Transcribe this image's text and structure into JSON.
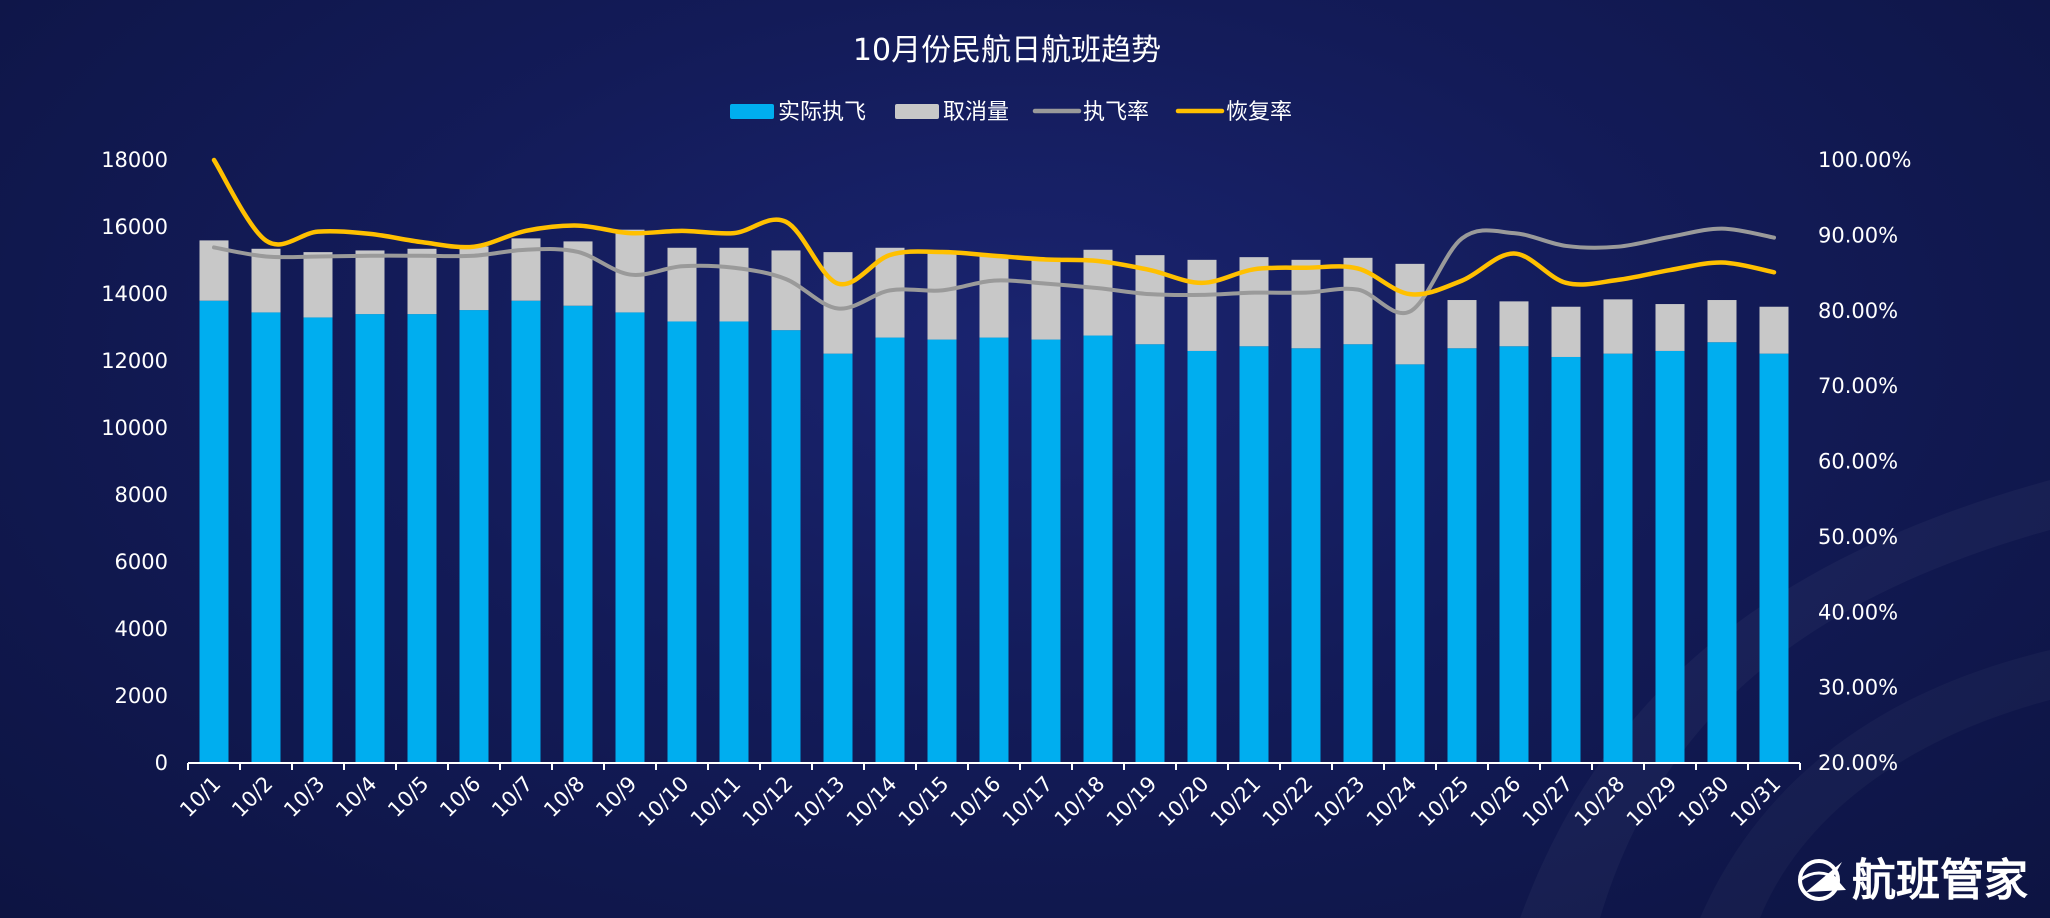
{
  "chart_data": {
    "type": "bar",
    "stacked": true,
    "title": "10月份民航日航班趋势",
    "legend_position": "top-center",
    "grid": false,
    "categories": [
      "10/1",
      "10/2",
      "10/3",
      "10/4",
      "10/5",
      "10/6",
      "10/7",
      "10/8",
      "10/9",
      "10/10",
      "10/11",
      "10/12",
      "10/13",
      "10/14",
      "10/15",
      "10/16",
      "10/17",
      "10/18",
      "10/19",
      "10/20",
      "10/21",
      "10/22",
      "10/23",
      "10/24",
      "10/25",
      "10/26",
      "10/27",
      "10/28",
      "10/29",
      "10/30",
      "10/31"
    ],
    "y_left": {
      "min": 0,
      "max": 18000,
      "ticks": [
        "0",
        "2000",
        "4000",
        "6000",
        "8000",
        "10000",
        "12000",
        "14000",
        "16000",
        "18000"
      ]
    },
    "y_right": {
      "min": 0.2,
      "max": 1.0,
      "ticks": [
        "20.00%",
        "30.00%",
        "40.00%",
        "50.00%",
        "60.00%",
        "70.00%",
        "80.00%",
        "90.00%",
        "100.00%"
      ]
    },
    "series": [
      {
        "name": "实际执飞",
        "kind": "bar",
        "axis": "left",
        "color": "#00aeef",
        "values": [
          13800,
          13450,
          13300,
          13400,
          13400,
          13520,
          13800,
          13650,
          13450,
          13180,
          13180,
          12920,
          12220,
          12700,
          12640,
          12700,
          12640,
          12760,
          12500,
          12300,
          12440,
          12380,
          12500,
          11900,
          12380,
          12440,
          12120,
          12220,
          12300,
          12560,
          12220
        ]
      },
      {
        "name": "取消量",
        "kind": "bar",
        "axis": "left",
        "color": "#c8c8c8",
        "values": [
          1800,
          1900,
          1950,
          1900,
          1950,
          1900,
          1860,
          1920,
          2470,
          2200,
          2200,
          2380,
          3030,
          2680,
          2660,
          2420,
          2440,
          2560,
          2660,
          2720,
          2660,
          2640,
          2580,
          3000,
          1440,
          1340,
          1500,
          1620,
          1400,
          1260,
          1400
        ]
      },
      {
        "name": "执飞率",
        "kind": "line",
        "axis": "right",
        "color": "#9a9a9a",
        "values": [
          0.884,
          0.872,
          0.872,
          0.873,
          0.873,
          0.873,
          0.881,
          0.878,
          0.848,
          0.859,
          0.857,
          0.842,
          0.803,
          0.827,
          0.827,
          0.84,
          0.836,
          0.83,
          0.822,
          0.821,
          0.824,
          0.824,
          0.828,
          0.799,
          0.896,
          0.903,
          0.886,
          0.885,
          0.898,
          0.909,
          0.897
        ]
      },
      {
        "name": "恢复率",
        "kind": "line",
        "axis": "right",
        "color": "#ffc000",
        "values": [
          1.0,
          0.893,
          0.905,
          0.902,
          0.891,
          0.885,
          0.906,
          0.913,
          0.903,
          0.906,
          0.903,
          0.918,
          0.836,
          0.874,
          0.878,
          0.873,
          0.868,
          0.866,
          0.854,
          0.837,
          0.855,
          0.857,
          0.856,
          0.822,
          0.84,
          0.876,
          0.837,
          0.841,
          0.854,
          0.864,
          0.851
        ]
      }
    ]
  },
  "brand": {
    "name": "航班管家",
    "logo": "plane-globe-logo"
  }
}
